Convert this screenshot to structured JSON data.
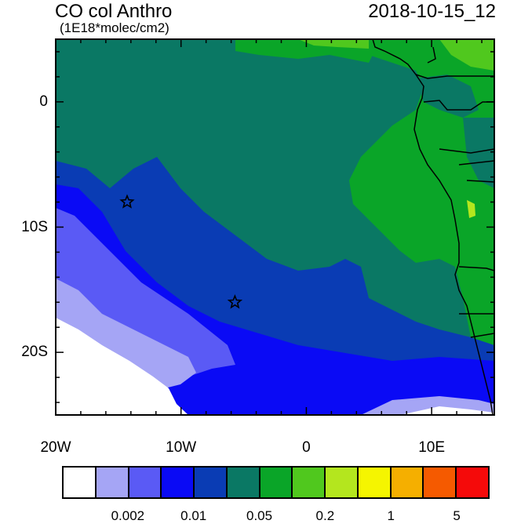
{
  "header": {
    "title": "CO col Anthro",
    "subtitle": "(1E18*molec/cm2)",
    "datetime": "2018-10-15_12"
  },
  "map": {
    "lon_range": [
      -20,
      15
    ],
    "lat_range": [
      -25,
      5
    ],
    "y_ticks": [
      {
        "lat": 0,
        "label": "0"
      },
      {
        "lat": -10,
        "label": "10S"
      },
      {
        "lat": -20,
        "label": "20S"
      }
    ],
    "x_ticks": [
      {
        "lon": -20,
        "label": "20W"
      },
      {
        "lon": -10,
        "label": "10W"
      },
      {
        "lon": 0,
        "label": "0"
      },
      {
        "lon": 10,
        "label": "10E"
      }
    ],
    "markers": [
      {
        "name": "star-marker-1",
        "lon": -14.3,
        "lat": -8.0
      },
      {
        "name": "star-marker-2",
        "lon": -5.7,
        "lat": -16.0
      }
    ]
  },
  "colorbar": {
    "colors": [
      "#ffffff",
      "#a5a5f5",
      "#5a5af5",
      "#0a0af5",
      "#0a3cb4",
      "#0a7864",
      "#0aa528",
      "#50c81e",
      "#b4e61e",
      "#f5f500",
      "#f5af00",
      "#f55a00",
      "#f50a0a"
    ],
    "labels": [
      {
        "after_box": 2,
        "text": "0.002"
      },
      {
        "after_box": 4,
        "text": "0.01"
      },
      {
        "after_box": 6,
        "text": "0.05"
      },
      {
        "after_box": 8,
        "text": "0.2"
      },
      {
        "after_box": 10,
        "text": "1"
      },
      {
        "after_box": 12,
        "text": "5"
      }
    ]
  }
}
